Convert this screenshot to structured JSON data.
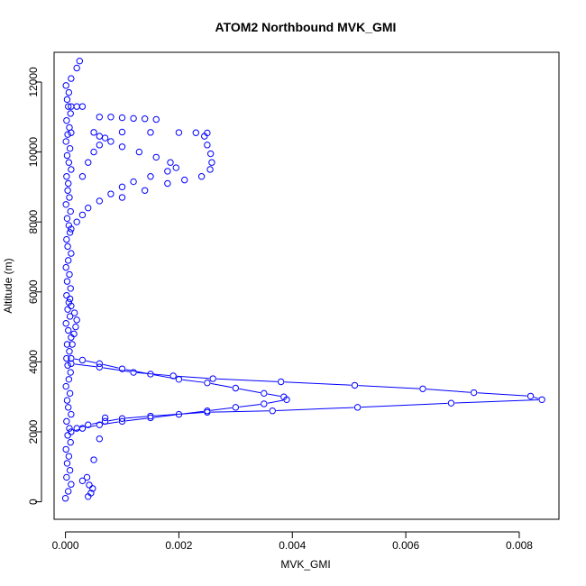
{
  "chart_data": {
    "type": "scatter",
    "title": "ATOM2 Northbound MVK_GMI",
    "xlabel": "MVK_GMI",
    "ylabel": "Altitude (m)",
    "xlim": [
      -0.0002,
      0.0087
    ],
    "ylim": [
      -500,
      12850
    ],
    "x_ticks": [
      0,
      0.002,
      0.004,
      0.006,
      0.008
    ],
    "x_tick_labels": [
      "0.000",
      "0.002",
      "0.004",
      "0.006",
      "0.008"
    ],
    "y_ticks": [
      0,
      2000,
      4000,
      6000,
      8000,
      10000,
      12000
    ],
    "y_tick_labels": [
      "0",
      "2000",
      "4000",
      "6000",
      "8000",
      "10000",
      "12000"
    ],
    "marker": "open-circle",
    "color": "#0000ff",
    "grid": false,
    "series": [
      {
        "style": "points",
        "points": [
          [
            0.0,
            100
          ],
          [
            5e-05,
            300
          ],
          [
            0.0001,
            500
          ],
          [
            2e-05,
            700
          ],
          [
            8e-05,
            900
          ],
          [
            3e-05,
            1100
          ],
          [
            6e-05,
            1300
          ],
          [
            1e-05,
            1500
          ],
          [
            9e-05,
            1700
          ],
          [
            4e-05,
            1900
          ],
          [
            7e-05,
            2100
          ],
          [
            2e-05,
            2300
          ],
          [
            0.0001,
            2500
          ],
          [
            5e-05,
            2700
          ],
          [
            3e-05,
            2900
          ],
          [
            8e-05,
            3100
          ],
          [
            1e-05,
            3300
          ],
          [
            6e-05,
            3500
          ],
          [
            9e-05,
            3700
          ],
          [
            4e-05,
            3900
          ],
          [
            2e-05,
            4100
          ],
          [
            7e-05,
            4300
          ],
          [
            3e-05,
            4500
          ],
          [
            0.0001,
            4700
          ],
          [
            5e-05,
            4900
          ],
          [
            1e-05,
            5100
          ],
          [
            8e-05,
            5300
          ],
          [
            4e-05,
            5500
          ],
          [
            6e-05,
            5700
          ],
          [
            2e-05,
            5900
          ],
          [
            9e-05,
            6100
          ],
          [
            3e-05,
            6300
          ],
          [
            7e-05,
            6500
          ],
          [
            1e-05,
            6700
          ],
          [
            5e-05,
            6900
          ],
          [
            0.0001,
            7100
          ],
          [
            4e-05,
            7300
          ],
          [
            2e-05,
            7500
          ],
          [
            8e-05,
            7700
          ],
          [
            6e-05,
            7900
          ],
          [
            3e-05,
            8100
          ],
          [
            9e-05,
            8300
          ],
          [
            1e-05,
            8500
          ],
          [
            7e-05,
            8700
          ],
          [
            4e-05,
            8900
          ],
          [
            5e-05,
            9100
          ],
          [
            2e-05,
            9300
          ],
          [
            0.0001,
            9500
          ],
          [
            6e-05,
            9700
          ],
          [
            3e-05,
            9900
          ],
          [
            8e-05,
            10100
          ],
          [
            1e-05,
            10300
          ],
          [
            4e-05,
            10500
          ],
          [
            7e-05,
            10700
          ],
          [
            2e-05,
            10900
          ],
          [
            9e-05,
            11100
          ],
          [
            5e-05,
            11300
          ],
          [
            3e-05,
            11500
          ],
          [
            6e-05,
            11700
          ],
          [
            1e-05,
            11900
          ],
          [
            0.0001,
            12100
          ],
          [
            0.0002,
            12400
          ],
          [
            0.00025,
            12600
          ],
          [
            0.0004,
            150
          ],
          [
            0.00045,
            250
          ],
          [
            0.00048,
            380
          ],
          [
            0.00042,
            480
          ],
          [
            0.0003,
            600
          ],
          [
            0.00038,
            700
          ],
          [
            0.0005,
            1200
          ],
          [
            0.0006,
            1800
          ],
          [
            0.0007,
            2400
          ],
          [
            0.00012,
            4500
          ],
          [
            0.00015,
            4800
          ],
          [
            0.00018,
            5000
          ],
          [
            0.0002,
            5200
          ],
          [
            0.00016,
            5400
          ],
          [
            0.0001,
            5600
          ],
          [
            8e-05,
            5800
          ],
          [
            0.0001,
            7800
          ],
          [
            0.0002,
            8000
          ],
          [
            0.0003,
            8200
          ],
          [
            0.0004,
            8400
          ],
          [
            0.0006,
            8600
          ],
          [
            0.0008,
            8800
          ],
          [
            0.001,
            9000
          ],
          [
            0.0012,
            9150
          ],
          [
            0.0015,
            9300
          ],
          [
            0.0018,
            9450
          ],
          [
            0.00195,
            9550
          ],
          [
            0.00185,
            9700
          ],
          [
            0.0016,
            9850
          ],
          [
            0.0013,
            10000
          ],
          [
            0.001,
            10150
          ],
          [
            0.0008,
            10300
          ],
          [
            0.0006,
            10450
          ],
          [
            0.001,
            8700
          ],
          [
            0.0014,
            8900
          ],
          [
            0.0018,
            9100
          ],
          [
            0.0021,
            9200
          ],
          [
            0.0024,
            9300
          ],
          [
            0.00255,
            9500
          ],
          [
            0.00258,
            9700
          ],
          [
            0.00256,
            9950
          ],
          [
            0.0025,
            10200
          ],
          [
            0.00245,
            10450
          ],
          [
            0.0001,
            10550
          ],
          [
            0.0005,
            10560
          ],
          [
            0.001,
            10570
          ],
          [
            0.0015,
            10560
          ],
          [
            0.002,
            10555
          ],
          [
            0.0023,
            10550
          ],
          [
            0.0025,
            10545
          ],
          [
            0.0006,
            11000
          ],
          [
            0.0008,
            11000
          ],
          [
            0.001,
            10980
          ],
          [
            0.0012,
            10960
          ],
          [
            0.0014,
            10950
          ],
          [
            0.0016,
            10930
          ],
          [
            0.0001,
            11300
          ],
          [
            0.0002,
            11300
          ],
          [
            0.0003,
            11300
          ],
          [
            0.0003,
            9300
          ],
          [
            0.0004,
            9700
          ],
          [
            0.0005,
            10000
          ],
          [
            0.0006,
            10200
          ],
          [
            0.0007,
            10400
          ]
        ]
      },
      {
        "style": "points-and-lines",
        "points": [
          [
            0.0001,
            4100
          ],
          [
            0.0003,
            4050
          ],
          [
            0.0006,
            3950
          ],
          [
            0.001,
            3800
          ],
          [
            0.0015,
            3650
          ],
          [
            0.002,
            3500
          ],
          [
            0.0025,
            3400
          ],
          [
            0.003,
            3250
          ],
          [
            0.0035,
            3100
          ],
          [
            0.00385,
            3000
          ],
          [
            0.0039,
            2920
          ],
          [
            0.0035,
            2800
          ],
          [
            0.003,
            2700
          ],
          [
            0.0025,
            2600
          ],
          [
            0.002,
            2500
          ],
          [
            0.0015,
            2400
          ],
          [
            0.001,
            2300
          ],
          [
            0.0006,
            2200
          ],
          [
            0.0003,
            2100
          ],
          [
            0.0001,
            2000
          ]
        ]
      },
      {
        "style": "points-and-lines",
        "points": [
          [
            0.0001,
            3950
          ],
          [
            0.0006,
            3850
          ],
          [
            0.0012,
            3700
          ],
          [
            0.0019,
            3600
          ],
          [
            0.0026,
            3520
          ],
          [
            0.0038,
            3430
          ],
          [
            0.0051,
            3330
          ],
          [
            0.0063,
            3230
          ],
          [
            0.0072,
            3120
          ],
          [
            0.0082,
            3020
          ],
          [
            0.0084,
            2920
          ],
          [
            0.0068,
            2820
          ],
          [
            0.00515,
            2700
          ],
          [
            0.00365,
            2600
          ],
          [
            0.0025,
            2560
          ],
          [
            0.0015,
            2450
          ],
          [
            0.001,
            2380
          ],
          [
            0.0007,
            2300
          ],
          [
            0.0004,
            2200
          ],
          [
            0.0002,
            2100
          ]
        ]
      }
    ]
  }
}
